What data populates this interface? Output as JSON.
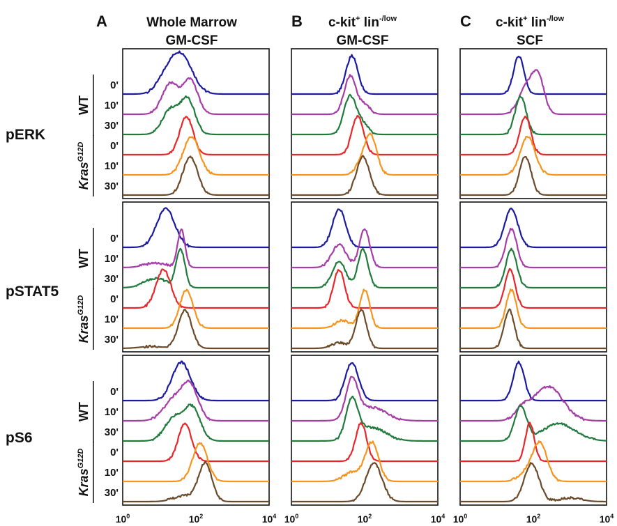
{
  "columns": [
    {
      "letter": "A",
      "line1": "Whole Marrow",
      "line2": "GM-CSF",
      "sup": ""
    },
    {
      "letter": "B",
      "line1": "c-kit",
      "sup1": "+",
      "line1b": " lin",
      "sup2": "-/low",
      "line2": "GM-CSF"
    },
    {
      "letter": "C",
      "line1": "c-kit",
      "sup1": "+",
      "line1b": " lin",
      "sup2": "-/low",
      "line2": "SCF"
    }
  ],
  "rows": [
    {
      "label": "pERK"
    },
    {
      "label": "pSTAT5"
    },
    {
      "label": "pS6"
    }
  ],
  "group_labels": {
    "wt": "WT",
    "kras": "Kras",
    "kras_sup": "G12D"
  },
  "time_labels": [
    "0'",
    "10'",
    "30'",
    "0'",
    "10'",
    "30'"
  ],
  "x_ticks": [
    "10",
    "10",
    "10"
  ],
  "x_tick_exps": [
    "0",
    "2",
    "4"
  ],
  "series_colors": {
    "wt_0": "#1a1a9e",
    "wt_10": "#a53ca8",
    "wt_30": "#1f7a3c",
    "kras_0": "#e8262a",
    "kras_10": "#f7941d",
    "kras_30": "#6b4a2a"
  },
  "chart_data": {
    "type": "area",
    "x_scale": "log",
    "xlim": [
      1,
      10000
    ],
    "series_order": [
      "wt_0",
      "wt_10",
      "wt_30",
      "kras_0",
      "kras_10",
      "kras_30"
    ],
    "panels": [
      {
        "row": 0,
        "col": 0,
        "peaks": [
          [
            [
              40,
              1.0,
              0.3
            ],
            [
              15,
              0.35,
              0.25
            ]
          ],
          [
            [
              20,
              0.8,
              0.22
            ],
            [
              70,
              0.9,
              0.2
            ]
          ],
          [
            [
              20,
              0.65,
              0.22
            ],
            [
              60,
              0.9,
              0.2
            ]
          ],
          [
            [
              55,
              1.0,
              0.18
            ]
          ],
          [
            [
              75,
              1.0,
              0.22
            ]
          ],
          [
            [
              70,
              1.0,
              0.2
            ]
          ]
        ]
      },
      {
        "row": 0,
        "col": 1,
        "peaks": [
          [
            [
              45,
              1.0,
              0.16
            ]
          ],
          [
            [
              40,
              1.0,
              0.16
            ],
            [
              100,
              0.25,
              0.15
            ]
          ],
          [
            [
              40,
              1.0,
              0.17
            ],
            [
              90,
              0.25,
              0.15
            ]
          ],
          [
            [
              65,
              1.0,
              0.16
            ]
          ],
          [
            [
              150,
              1.0,
              0.16
            ],
            [
              80,
              0.3,
              0.15
            ]
          ],
          [
            [
              90,
              1.0,
              0.18
            ]
          ]
        ]
      },
      {
        "row": 0,
        "col": 2,
        "peaks": [
          [
            [
              40,
              1.0,
              0.14
            ]
          ],
          [
            [
              70,
              0.75,
              0.22
            ],
            [
              140,
              0.8,
              0.16
            ]
          ],
          [
            [
              45,
              1.0,
              0.15
            ]
          ],
          [
            [
              60,
              1.0,
              0.15
            ]
          ],
          [
            [
              70,
              1.0,
              0.2
            ]
          ],
          [
            [
              60,
              1.0,
              0.16
            ]
          ]
        ]
      },
      {
        "row": 1,
        "col": 0,
        "peaks": [
          [
            [
              15,
              1.0,
              0.25
            ]
          ],
          [
            [
              40,
              1.0,
              0.1
            ],
            [
              8,
              0.12,
              0.3
            ]
          ],
          [
            [
              38,
              1.0,
              0.12
            ],
            [
              8,
              0.25,
              0.3
            ]
          ],
          [
            [
              13,
              1.0,
              0.2
            ]
          ],
          [
            [
              55,
              1.0,
              0.18
            ]
          ],
          [
            [
              50,
              1.0,
              0.18
            ],
            [
              6,
              0.05,
              0.3
            ]
          ]
        ]
      },
      {
        "row": 1,
        "col": 1,
        "peaks": [
          [
            [
              20,
              1.0,
              0.18
            ]
          ],
          [
            [
              20,
              0.6,
              0.2
            ],
            [
              100,
              1.0,
              0.14
            ]
          ],
          [
            [
              20,
              0.7,
              0.18
            ],
            [
              90,
              1.0,
              0.14
            ]
          ],
          [
            [
              20,
              1.0,
              0.15
            ]
          ],
          [
            [
              100,
              1.0,
              0.14
            ],
            [
              25,
              0.2,
              0.2
            ]
          ],
          [
            [
              80,
              1.0,
              0.15
            ],
            [
              20,
              0.15,
              0.2
            ]
          ]
        ]
      },
      {
        "row": 1,
        "col": 2,
        "peaks": [
          [
            [
              25,
              1.0,
              0.18
            ]
          ],
          [
            [
              25,
              1.0,
              0.15
            ]
          ],
          [
            [
              25,
              1.0,
              0.15
            ]
          ],
          [
            [
              23,
              1.0,
              0.14
            ]
          ],
          [
            [
              25,
              1.0,
              0.14
            ]
          ],
          [
            [
              22,
              1.0,
              0.14
            ]
          ]
        ]
      },
      {
        "row": 2,
        "col": 0,
        "peaks": [
          [
            [
              40,
              1.0,
              0.25
            ]
          ],
          [
            [
              25,
              0.55,
              0.28
            ],
            [
              70,
              0.85,
              0.22
            ]
          ],
          [
            [
              25,
              0.6,
              0.25
            ],
            [
              80,
              0.85,
              0.22
            ]
          ],
          [
            [
              50,
              1.0,
              0.18
            ]
          ],
          [
            [
              130,
              1.0,
              0.2
            ]
          ],
          [
            [
              180,
              1.0,
              0.18
            ],
            [
              50,
              0.15,
              0.3
            ]
          ]
        ]
      },
      {
        "row": 2,
        "col": 1,
        "peaks": [
          [
            [
              45,
              1.0,
              0.18
            ]
          ],
          [
            [
              45,
              1.0,
              0.16
            ],
            [
              150,
              0.35,
              0.4
            ]
          ],
          [
            [
              45,
              1.0,
              0.16
            ],
            [
              150,
              0.35,
              0.4
            ]
          ],
          [
            [
              80,
              1.0,
              0.15
            ]
          ],
          [
            [
              160,
              1.0,
              0.18
            ],
            [
              50,
              0.25,
              0.25
            ]
          ],
          [
            [
              180,
              1.0,
              0.22
            ]
          ]
        ]
      },
      {
        "row": 2,
        "col": 2,
        "peaks": [
          [
            [
              40,
              1.0,
              0.15
            ]
          ],
          [
            [
              250,
              0.9,
              0.4
            ],
            [
              50,
              0.25,
              0.2
            ]
          ],
          [
            [
              45,
              0.9,
              0.16
            ],
            [
              500,
              0.45,
              0.45
            ]
          ],
          [
            [
              80,
              1.0,
              0.12
            ]
          ],
          [
            [
              150,
              1.0,
              0.2
            ],
            [
              60,
              0.2,
              0.2
            ]
          ],
          [
            [
              90,
              1.0,
              0.2
            ],
            [
              1000,
              0.1,
              0.3
            ]
          ]
        ]
      }
    ]
  }
}
